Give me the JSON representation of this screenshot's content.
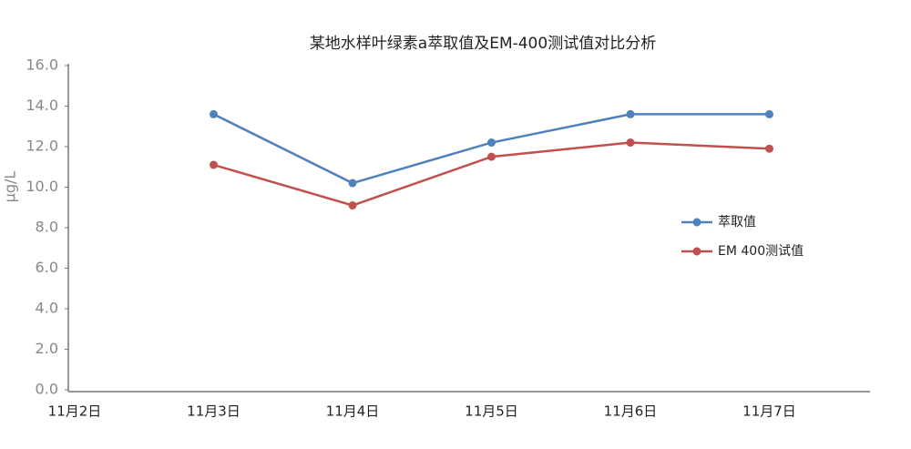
{
  "chart_data": {
    "type": "line",
    "title": "某地水样叶绿素a萃取值及EM-400测试值对比分析",
    "y_label": "μg/L",
    "categories": [
      "11月2日",
      "11月3日",
      "11月4日",
      "11月5日",
      "11月6日",
      "11月7日"
    ],
    "series": [
      {
        "name": "萃取值",
        "color": "#4f81bd",
        "values": [
          null,
          13.6,
          10.2,
          12.2,
          13.6,
          13.6
        ]
      },
      {
        "name": "EM 400测试值",
        "color": "#c0504d",
        "values": [
          null,
          11.1,
          9.1,
          11.5,
          12.2,
          11.9
        ]
      }
    ],
    "ylim": [
      0,
      16
    ],
    "yticks": [
      {
        "value": 0,
        "label": "0.0"
      },
      {
        "value": 2,
        "label": "2.0"
      },
      {
        "value": 4,
        "label": "4.0"
      },
      {
        "value": 6,
        "label": "6.0"
      },
      {
        "value": 8,
        "label": "8.0"
      },
      {
        "value": 10,
        "label": "10.0"
      },
      {
        "value": 12,
        "label": "12.0"
      },
      {
        "value": 14,
        "label": "14.0"
      },
      {
        "value": 16,
        "label": "16.0"
      }
    ],
    "grid": false,
    "legend": "right"
  }
}
